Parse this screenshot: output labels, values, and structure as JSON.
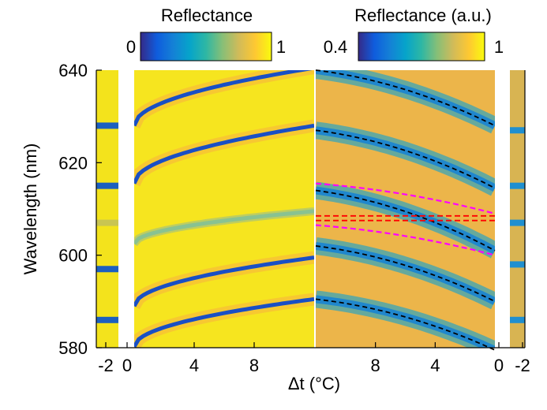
{
  "colors": {
    "parula": [
      "#352a87",
      "#0f5cdd",
      "#1481d6",
      "#06a4ca",
      "#2eb7a4",
      "#87bf77",
      "#d1bb59",
      "#fec832",
      "#f9fb0e"
    ],
    "reflectance_muted": [
      "#2a90c0",
      "#3aa6b8",
      "#70b78e",
      "#b7b86a",
      "#dbb350",
      "#e8b64a",
      "#f1c149"
    ],
    "guide_black": "#000000",
    "guide_magenta": "#ff00ff",
    "guide_red": "#ff0000"
  },
  "chart_data": {
    "type": "heatmap",
    "xlabel": "Δt (°C)",
    "ylabel": "Wavelength (nm)",
    "ylim": [
      580,
      640
    ],
    "yticks": [
      580,
      600,
      620,
      640
    ],
    "panels": [
      {
        "name": "left-calculated",
        "colorbar": {
          "label": "Reflectance",
          "min": "0",
          "max": "1",
          "range": [
            0,
            1
          ]
        },
        "xticks": [
          "-2",
          "0",
          "4",
          "8"
        ],
        "xrange": [
          0,
          12
        ],
        "reference_strip_dips": [
          586,
          597,
          607,
          615,
          628
        ],
        "dip_curves": [
          {
            "at_0": 580.2,
            "at_12": 590.5
          },
          {
            "at_0": 589.0,
            "at_12": 599.5
          },
          {
            "at_0": 602.5,
            "at_12": 609.5
          },
          {
            "at_0": 615.5,
            "at_12": 628.0
          },
          {
            "at_0": 628.0,
            "at_12": 640.5
          }
        ]
      },
      {
        "name": "right-measured",
        "colorbar": {
          "label": "Reflectance (a.u.)",
          "min": "0.4",
          "max": "1",
          "range": [
            0.4,
            1
          ]
        },
        "xticks": [
          "8",
          "4",
          "0",
          "-2"
        ],
        "xrange": [
          12,
          0
        ],
        "reference_strip_dips": [
          586,
          598,
          607,
          615,
          627
        ],
        "black_dashed_fits": [
          {
            "at_12": 640.0,
            "at_0": 628.0
          },
          {
            "at_12": 627.0,
            "at_0": 614.5
          },
          {
            "at_12": 614.0,
            "at_0": 601.0
          },
          {
            "at_12": 602.0,
            "at_0": 590.0
          },
          {
            "at_12": 590.5,
            "at_0": 579.5
          }
        ],
        "magenta_dashed_fits": [
          {
            "at_12": 615.5,
            "at_0": 609.0
          },
          {
            "at_12": 606.5,
            "at_0": 600.0
          }
        ],
        "red_dashed_lines": [
          608.5,
          607.5
        ]
      }
    ]
  }
}
